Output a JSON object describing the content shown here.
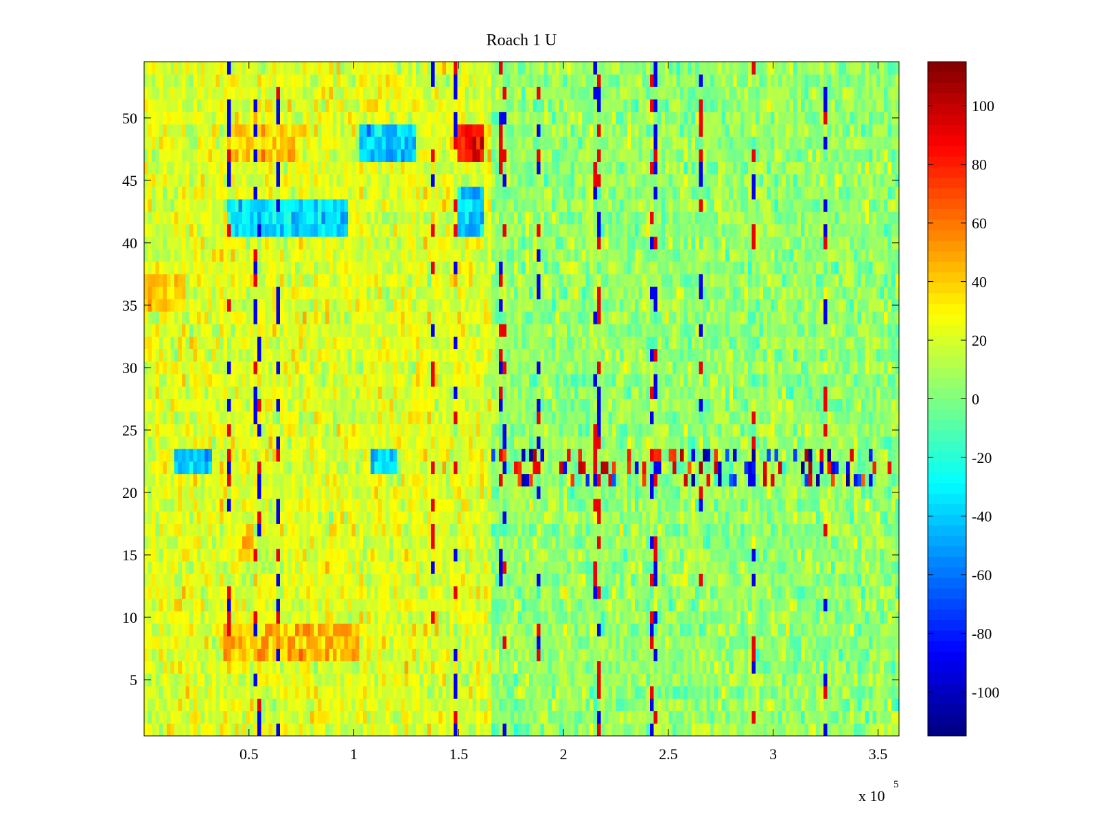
{
  "chart_data": {
    "type": "heatmap",
    "title": "Roach 1 U",
    "xlabel": "",
    "ylabel": "",
    "x_exponent_label": "x 10",
    "x_exponent_power": "5",
    "xlim": [
      0,
      360000
    ],
    "ylim": [
      0.5,
      54.5
    ],
    "x_ticks": [
      50000,
      100000,
      150000,
      200000,
      250000,
      300000,
      350000
    ],
    "x_tick_labels": [
      "0.5",
      "1",
      "1.5",
      "2",
      "2.5",
      "3",
      "3.5"
    ],
    "y_ticks": [
      5,
      10,
      15,
      20,
      25,
      30,
      35,
      40,
      45,
      50
    ],
    "y_tick_labels": [
      "5",
      "10",
      "15",
      "20",
      "25",
      "30",
      "35",
      "40",
      "45",
      "50"
    ],
    "rows": 54,
    "color_limits": [
      -115,
      115
    ],
    "colormap": "jet",
    "colorbar_ticks": [
      100,
      80,
      60,
      40,
      20,
      0,
      -20,
      -40,
      -60,
      -80,
      -100
    ],
    "colorbar_tick_labels": [
      "100",
      "80",
      "60",
      "40",
      "20",
      "0",
      "-20",
      "-40",
      "-60",
      "-80",
      "-100"
    ],
    "baseline_level": 8,
    "regions": [
      {
        "x": [
          0,
          165000
        ],
        "y": [
          1,
          54
        ],
        "mean": 22
      },
      {
        "x": [
          165000,
          360000
        ],
        "y": [
          1,
          54
        ],
        "mean": 5
      },
      {
        "x": [
          38000,
          102000
        ],
        "y": [
          7,
          9
        ],
        "mean": 45
      },
      {
        "x": [
          45000,
          52000
        ],
        "y": [
          15,
          17
        ],
        "mean": 45
      },
      {
        "x": [
          0,
          20000
        ],
        "y": [
          35,
          37
        ],
        "mean": 40
      },
      {
        "x": [
          40000,
          98000
        ],
        "y": [
          41,
          43
        ],
        "mean": -35
      },
      {
        "x": [
          150000,
          162000
        ],
        "y": [
          41,
          44
        ],
        "mean": -40
      },
      {
        "x": [
          150000,
          162000
        ],
        "y": [
          47,
          49
        ],
        "mean": 85
      },
      {
        "x": [
          40000,
          75000
        ],
        "y": [
          47,
          49
        ],
        "mean": 40
      },
      {
        "x": [
          103000,
          130000
        ],
        "y": [
          47,
          49
        ],
        "mean": -40
      },
      {
        "x": [
          15000,
          32000
        ],
        "y": [
          22,
          23
        ],
        "mean": -40
      },
      {
        "x": [
          108000,
          120000
        ],
        "y": [
          22,
          23
        ],
        "mean": -40
      }
    ],
    "banded_rows": {
      "y": [
        21,
        23
      ],
      "x": [
        165000,
        360000
      ],
      "amplitude": 110
    },
    "vertical_streaks_x": [
      41000,
      54000,
      64000,
      138000,
      149000,
      171000,
      188000,
      216000,
      243000,
      265000,
      291000,
      325000
    ]
  }
}
